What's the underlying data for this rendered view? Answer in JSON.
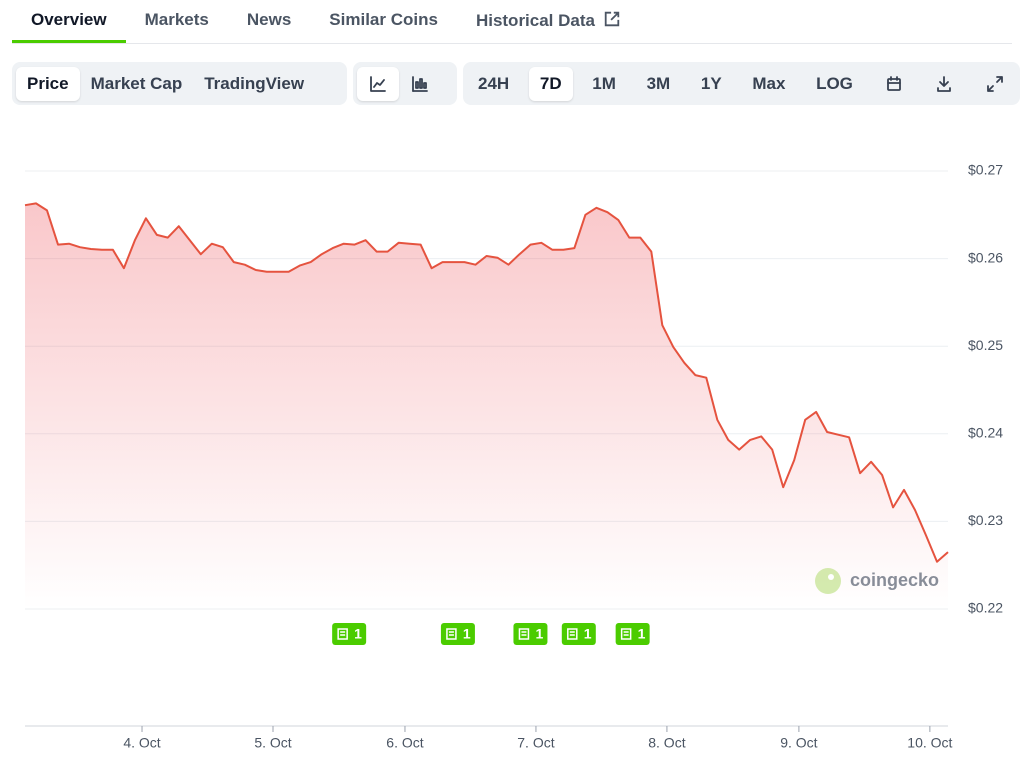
{
  "tabs": [
    "Overview",
    "Markets",
    "News",
    "Similar Coins",
    "Historical Data"
  ],
  "chart_views": [
    "Price",
    "Market Cap",
    "TradingView"
  ],
  "ranges": [
    "24H",
    "7D",
    "1M",
    "3M",
    "1Y",
    "Max",
    "LOG"
  ],
  "chart_data": {
    "type": "line",
    "color": "#e5533f",
    "watermark": "coingecko",
    "values": [
      0.2661,
      0.2663,
      0.2655,
      0.2616,
      0.2617,
      0.2613,
      0.2611,
      0.261,
      0.261,
      0.2589,
      0.2621,
      0.2646,
      0.2627,
      0.2624,
      0.2637,
      0.2621,
      0.2605,
      0.2617,
      0.2613,
      0.2596,
      0.2593,
      0.2587,
      0.2585,
      0.2585,
      0.2585,
      0.2592,
      0.2596,
      0.2605,
      0.2612,
      0.2617,
      0.2616,
      0.2621,
      0.2608,
      0.2608,
      0.2618,
      0.2617,
      0.2616,
      0.2589,
      0.2596,
      0.2596,
      0.2596,
      0.2593,
      0.2603,
      0.2601,
      0.2593,
      0.2605,
      0.2616,
      0.2618,
      0.261,
      0.261,
      0.2612,
      0.265,
      0.2658,
      0.2653,
      0.2644,
      0.2624,
      0.2624,
      0.2608,
      0.2524,
      0.2499,
      0.2481,
      0.2467,
      0.2464,
      0.2416,
      0.2393,
      0.2382,
      0.2393,
      0.2397,
      0.2382,
      0.2339,
      0.237,
      0.2416,
      0.2425,
      0.2402,
      0.2399,
      0.2396,
      0.2355,
      0.2368,
      0.2353,
      0.2316,
      0.2336,
      0.2313,
      0.2284,
      0.2254,
      0.2265
    ],
    "xlim": [
      0,
      84
    ],
    "xticks": [
      {
        "value": 10.65,
        "label": "4. Oct"
      },
      {
        "value": 22.57,
        "label": "5. Oct"
      },
      {
        "value": 34.58,
        "label": "6. Oct"
      },
      {
        "value": 46.5,
        "label": "7. Oct"
      },
      {
        "value": 58.42,
        "label": "8. Oct"
      },
      {
        "value": 70.43,
        "label": "9. Oct"
      },
      {
        "value": 82.35,
        "label": "10. Oct"
      }
    ],
    "ylim": [
      0.22,
      0.27
    ],
    "yticks": [
      {
        "value": 0.22,
        "label": "$0.22"
      },
      {
        "value": 0.23,
        "label": "$0.23"
      },
      {
        "value": 0.24,
        "label": "$0.24"
      },
      {
        "value": 0.25,
        "label": "$0.25"
      },
      {
        "value": 0.26,
        "label": "$0.26"
      },
      {
        "value": 0.27,
        "label": "$0.27"
      }
    ],
    "grid": true,
    "annotations": [
      {
        "x": 29.5,
        "text": "1"
      },
      {
        "x": 39.4,
        "text": "1"
      },
      {
        "x": 46.0,
        "text": "1"
      },
      {
        "x": 50.4,
        "text": "1"
      },
      {
        "x": 55.3,
        "text": "1"
      }
    ]
  }
}
